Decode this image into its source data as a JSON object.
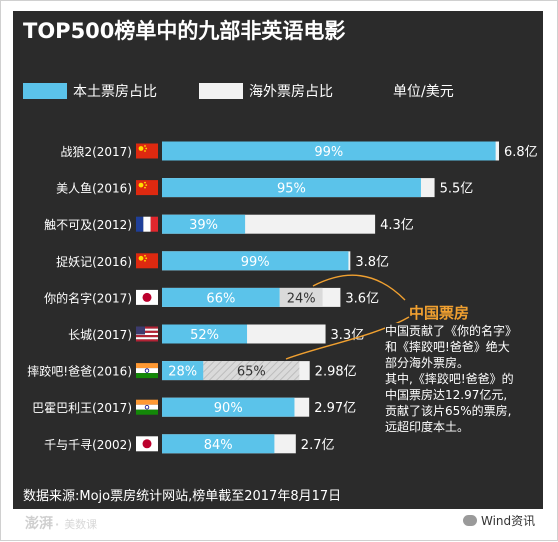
{
  "title": "TOP500榜单中的九部非英语电影",
  "legend": {
    "domestic": "本土票房占比",
    "overseas": "海外票房占比",
    "unit": "单位/美元"
  },
  "colors": {
    "domestic": "#5bc3ea",
    "overseas": "#f2f2f2",
    "china_share": "#dadada",
    "background": "#2b2b2b",
    "note_heading": "#f0a030",
    "bar_text": "#ffffff"
  },
  "chart_data": {
    "type": "bar",
    "orientation": "horizontal",
    "stacked": true,
    "categories": [
      "战狼2(2017)",
      "美人鱼(2016)",
      "触不可及(2012)",
      "捉妖记(2016)",
      "你的名字(2017)",
      "长城(2017)",
      "摔跤吧!爸爸(2016)",
      "巴霍巴利王(2017)",
      "千与千寻(2002)"
    ],
    "flag_icons": [
      "china-flag-icon",
      "china-flag-icon",
      "france-flag-icon",
      "china-flag-icon",
      "japan-flag-icon",
      "usa-flag-icon",
      "india-flag-icon",
      "india-flag-icon",
      "japan-flag-icon"
    ],
    "domestic_share_labels": [
      "99%",
      "95%",
      "39%",
      "99%",
      "66%",
      "52%",
      "28%",
      "90%",
      "84%"
    ],
    "domestic_share": [
      99,
      95,
      39,
      99,
      66,
      52,
      28,
      90,
      84
    ],
    "china_share_labels": [
      "",
      "",
      "",
      "",
      "24%",
      "",
      "65%",
      "",
      ""
    ],
    "china_share": [
      0,
      0,
      0,
      0,
      24,
      0,
      65,
      0,
      0
    ],
    "total_labels": [
      "6.8亿",
      "5.5亿",
      "4.3亿",
      "3.8亿",
      "3.6亿",
      "3.3亿",
      "2.98亿",
      "2.97亿",
      "2.7亿"
    ],
    "total_gross": [
      6.8,
      5.5,
      4.3,
      3.8,
      3.6,
      3.3,
      2.98,
      2.97,
      2.7
    ]
  },
  "annotation": {
    "heading": "中国票房",
    "lines": [
      "中国贡献了《你的名字》",
      "和《摔跤吧!爸爸》绝大",
      "部分海外票房。",
      "其中,《摔跤吧!爸爸》的",
      "中国票房达12.97亿元,",
      "贡献了该片65%的票房,",
      "远超印度本土。"
    ]
  },
  "source": "数据来源:Mojo票房统计网站,榜单截至2017年8月17日",
  "logo": {
    "name": "澎湃",
    "sub": "美数课"
  },
  "watermark": "Wind资讯"
}
